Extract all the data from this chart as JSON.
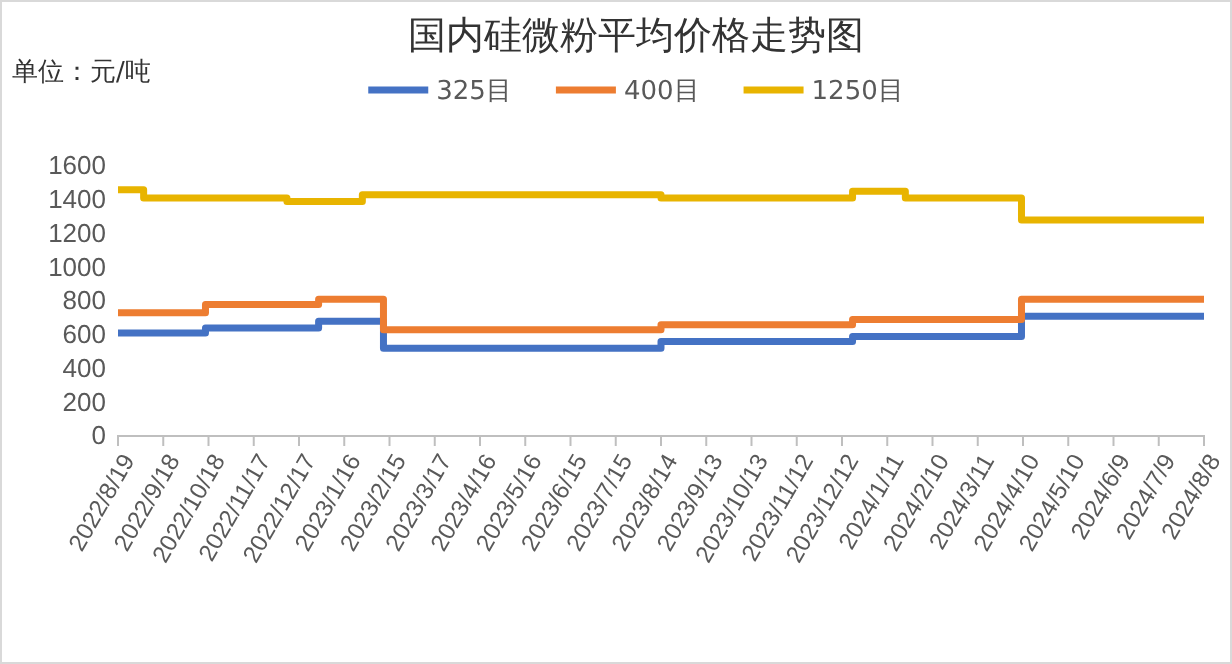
{
  "chart_data": {
    "type": "step",
    "title": "国内硅微粉平均价格走势图",
    "annotations": [
      "单位：元/吨"
    ],
    "legend": "top",
    "grid": false,
    "line_style": "solid",
    "marker": "none",
    "xlim": [
      "2022-08-19",
      "2024-08-08"
    ],
    "xticks": [
      {
        "value": "2022-08-19",
        "label": "2022/8/19"
      },
      {
        "value": "2022-09-18",
        "label": "2022/9/18"
      },
      {
        "value": "2022-10-18",
        "label": "2022/10/18"
      },
      {
        "value": "2022-11-17",
        "label": "2022/11/17"
      },
      {
        "value": "2022-12-17",
        "label": "2022/12/17"
      },
      {
        "value": "2023-01-16",
        "label": "2023/1/16"
      },
      {
        "value": "2023-02-15",
        "label": "2023/2/15"
      },
      {
        "value": "2023-03-17",
        "label": "2023/3/17"
      },
      {
        "value": "2023-04-16",
        "label": "2023/4/16"
      },
      {
        "value": "2023-05-16",
        "label": "2023/5/16"
      },
      {
        "value": "2023-06-15",
        "label": "2023/6/15"
      },
      {
        "value": "2023-07-15",
        "label": "2023/7/15"
      },
      {
        "value": "2023-08-14",
        "label": "2023/8/14"
      },
      {
        "value": "2023-09-13",
        "label": "2023/9/13"
      },
      {
        "value": "2023-10-13",
        "label": "2023/10/13"
      },
      {
        "value": "2023-11-12",
        "label": "2023/11/12"
      },
      {
        "value": "2023-12-12",
        "label": "2023/12/12"
      },
      {
        "value": "2024-01-11",
        "label": "2024/1/11"
      },
      {
        "value": "2024-02-10",
        "label": "2024/2/10"
      },
      {
        "value": "2024-03-11",
        "label": "2024/3/11"
      },
      {
        "value": "2024-04-10",
        "label": "2024/4/10"
      },
      {
        "value": "2024-05-10",
        "label": "2024/5/10"
      },
      {
        "value": "2024-06-09",
        "label": "2024/6/9"
      },
      {
        "value": "2024-07-09",
        "label": "2024/7/9"
      },
      {
        "value": "2024-08-08",
        "label": "2024/8/8"
      }
    ],
    "ylim": [
      0,
      1600
    ],
    "yticks": [
      0,
      200,
      400,
      600,
      800,
      1000,
      1200,
      1400,
      1600
    ],
    "series": [
      {
        "name": "325目",
        "color": "#4472c4",
        "x": [
          "2022-08-19",
          "2022-10-16",
          "2022-12-30",
          "2023-02-11",
          "2023-08-14",
          "2023-12-19",
          "2024-04-09",
          "2024-08-08"
        ],
        "values": [
          610,
          640,
          680,
          520,
          560,
          590,
          710,
          710
        ]
      },
      {
        "name": "400目",
        "color": "#ed7d31",
        "x": [
          "2022-08-19",
          "2022-10-16",
          "2022-12-30",
          "2023-02-11",
          "2023-08-14",
          "2023-12-19",
          "2024-04-09",
          "2024-08-08"
        ],
        "values": [
          730,
          780,
          810,
          630,
          660,
          690,
          810,
          810
        ]
      },
      {
        "name": "1250目",
        "color": "#e8b400",
        "x": [
          "2022-08-19",
          "2022-09-05",
          "2022-12-09",
          "2023-01-28",
          "2023-08-14",
          "2023-12-19",
          "2024-01-23",
          "2024-04-09",
          "2024-08-08"
        ],
        "values": [
          1460,
          1410,
          1390,
          1430,
          1410,
          1450,
          1410,
          1280,
          1280
        ]
      }
    ]
  }
}
